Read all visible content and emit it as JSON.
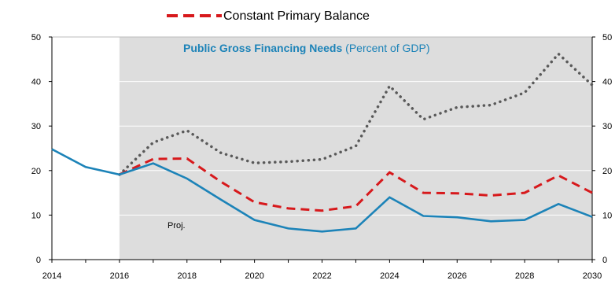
{
  "chart_data": {
    "type": "line",
    "title_bold": "Public Gross Financing Needs",
    "title_rest": " (Percent of GDP)",
    "legend": [
      {
        "label": "Constant Primary Balance",
        "color": "#D7191C",
        "style": "dashed"
      }
    ],
    "annotation": "Proj.",
    "x_ticks": [
      "2014",
      "2016",
      "2018",
      "2020",
      "2022",
      "2024",
      "2026",
      "2028",
      "2030"
    ],
    "y_ticks_left": [
      "0",
      "10",
      "20",
      "30",
      "40",
      "50"
    ],
    "y_ticks_right": [
      "0",
      "10",
      "20",
      "30",
      "40",
      "50"
    ],
    "xlim": [
      2014,
      2030
    ],
    "ylim": [
      0,
      50
    ],
    "projection_start": 2016,
    "colors": {
      "shade": "#DDDDDD",
      "baseline": "#1C83B8",
      "dashed": "#D7191C",
      "dotted": "#595959"
    },
    "series": [
      {
        "key": "baseline",
        "x": [
          2014,
          2015,
          2016,
          2017,
          2018,
          2019,
          2020,
          2021,
          2022,
          2023,
          2024,
          2025,
          2026,
          2027,
          2028,
          2029,
          2030
        ],
        "values": [
          24.8,
          20.8,
          19.1,
          21.6,
          18.2,
          13.5,
          8.9,
          7.0,
          6.3,
          7.0,
          14.0,
          9.8,
          9.5,
          8.6,
          8.9,
          12.5,
          9.6
        ]
      },
      {
        "key": "constant_primary_balance",
        "name": "Constant Primary Balance",
        "x": [
          2016,
          2017,
          2018,
          2019,
          2020,
          2021,
          2022,
          2023,
          2024,
          2025,
          2026,
          2027,
          2028,
          2029,
          2030
        ],
        "values": [
          19.1,
          22.6,
          22.7,
          17.5,
          12.9,
          11.5,
          11.0,
          12.0,
          19.6,
          15.0,
          14.9,
          14.4,
          15.0,
          18.9,
          15.0
        ]
      },
      {
        "key": "dotted",
        "x": [
          2016,
          2017,
          2018,
          2019,
          2020,
          2021,
          2022,
          2023,
          2024,
          2025,
          2026,
          2027,
          2028,
          2029,
          2030
        ],
        "values": [
          19.1,
          26.3,
          29.0,
          24.0,
          21.7,
          22.0,
          22.5,
          25.5,
          39.0,
          31.5,
          34.2,
          34.7,
          37.5,
          46.2,
          39.2
        ]
      }
    ]
  }
}
